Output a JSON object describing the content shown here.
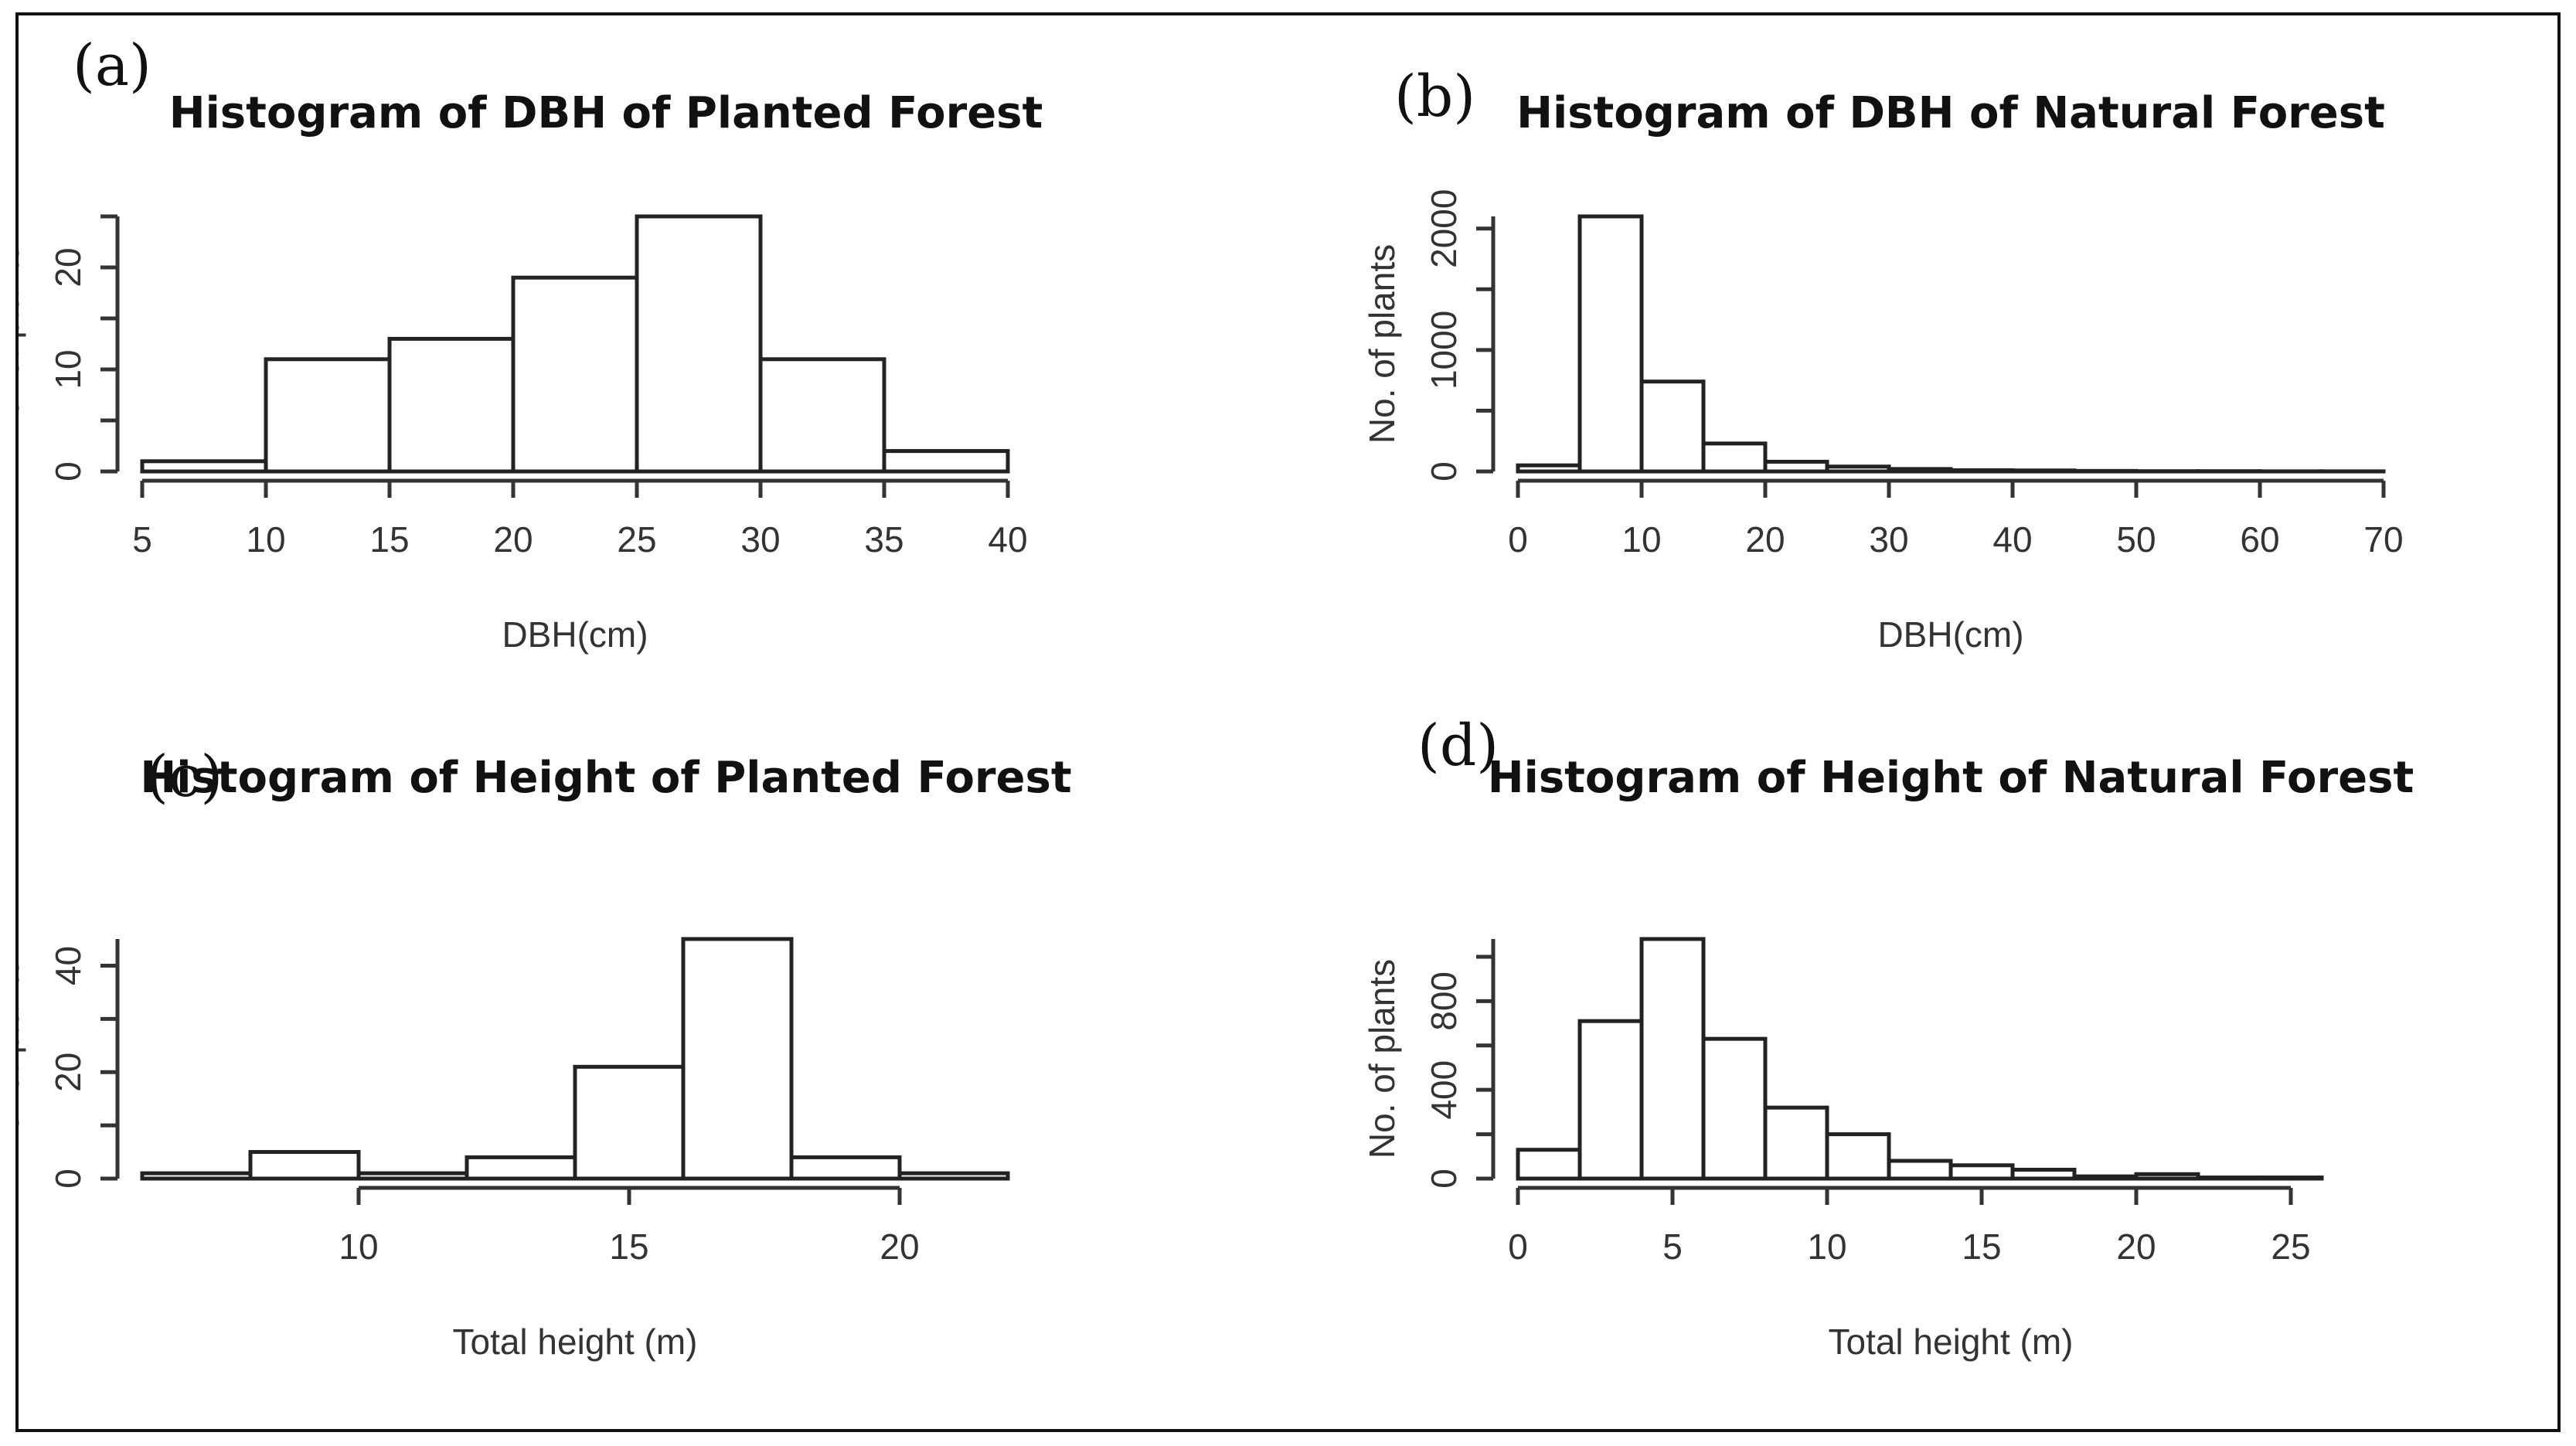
{
  "chart_data": [
    {
      "panel": "(a)",
      "type": "bar",
      "title": "Histogram of DBH of Planted Forest",
      "xlabel": "DBH(cm)",
      "ylabel": "No. of plants",
      "breaks": [
        5,
        10,
        15,
        20,
        25,
        30,
        35,
        40
      ],
      "values": [
        1,
        11,
        13,
        19,
        25,
        11,
        2
      ],
      "xlim": [
        5,
        40
      ],
      "ylim": [
        0,
        25
      ],
      "xticks": [
        5,
        10,
        15,
        20,
        25,
        30,
        35,
        40
      ],
      "yticks": [
        0,
        10,
        20
      ]
    },
    {
      "panel": "(b)",
      "type": "bar",
      "title": "Histogram of DBH of Natural Forest",
      "xlabel": "DBH(cm)",
      "ylabel": "No. of plants",
      "breaks": [
        0,
        5,
        10,
        15,
        20,
        25,
        30,
        35,
        40,
        45,
        50,
        55,
        60,
        65,
        70
      ],
      "values": [
        50,
        2100,
        740,
        230,
        80,
        40,
        20,
        10,
        8,
        4,
        2,
        2,
        1,
        1
      ],
      "xlim": [
        0,
        70
      ],
      "ylim": [
        0,
        2100
      ],
      "xticks": [
        0,
        10,
        20,
        30,
        40,
        50,
        60,
        70
      ],
      "yticks": [
        0,
        1000,
        2000
      ]
    },
    {
      "panel": "(c)",
      "type": "bar",
      "title": "Histogram of Height of Planted Forest",
      "xlabel": "Total height (m)",
      "ylabel": "No. of plants",
      "breaks": [
        6,
        8,
        10,
        12,
        14,
        16,
        18,
        20,
        22
      ],
      "values": [
        1,
        5,
        1,
        4,
        21,
        45,
        4,
        1
      ],
      "xlim": [
        6,
        22
      ],
      "ylim": [
        0,
        45
      ],
      "xticks": [
        10,
        15,
        20
      ],
      "yticks": [
        0,
        20,
        40
      ]
    },
    {
      "panel": "(d)",
      "type": "bar",
      "title": "Histogram of Height of Natural Forest",
      "xlabel": "Total height (m)",
      "ylabel": "No. of plants",
      "breaks": [
        0,
        2,
        4,
        6,
        8,
        10,
        12,
        14,
        16,
        18,
        20,
        22,
        24,
        26,
        28
      ],
      "values": [
        130,
        710,
        1080,
        630,
        320,
        200,
        80,
        60,
        40,
        10,
        20,
        5,
        5,
        0
      ],
      "xlim": [
        0,
        28
      ],
      "ylim": [
        0,
        1080
      ],
      "xticks": [
        0,
        5,
        10,
        15,
        20,
        25
      ],
      "yticks": [
        0,
        400,
        800
      ]
    }
  ]
}
